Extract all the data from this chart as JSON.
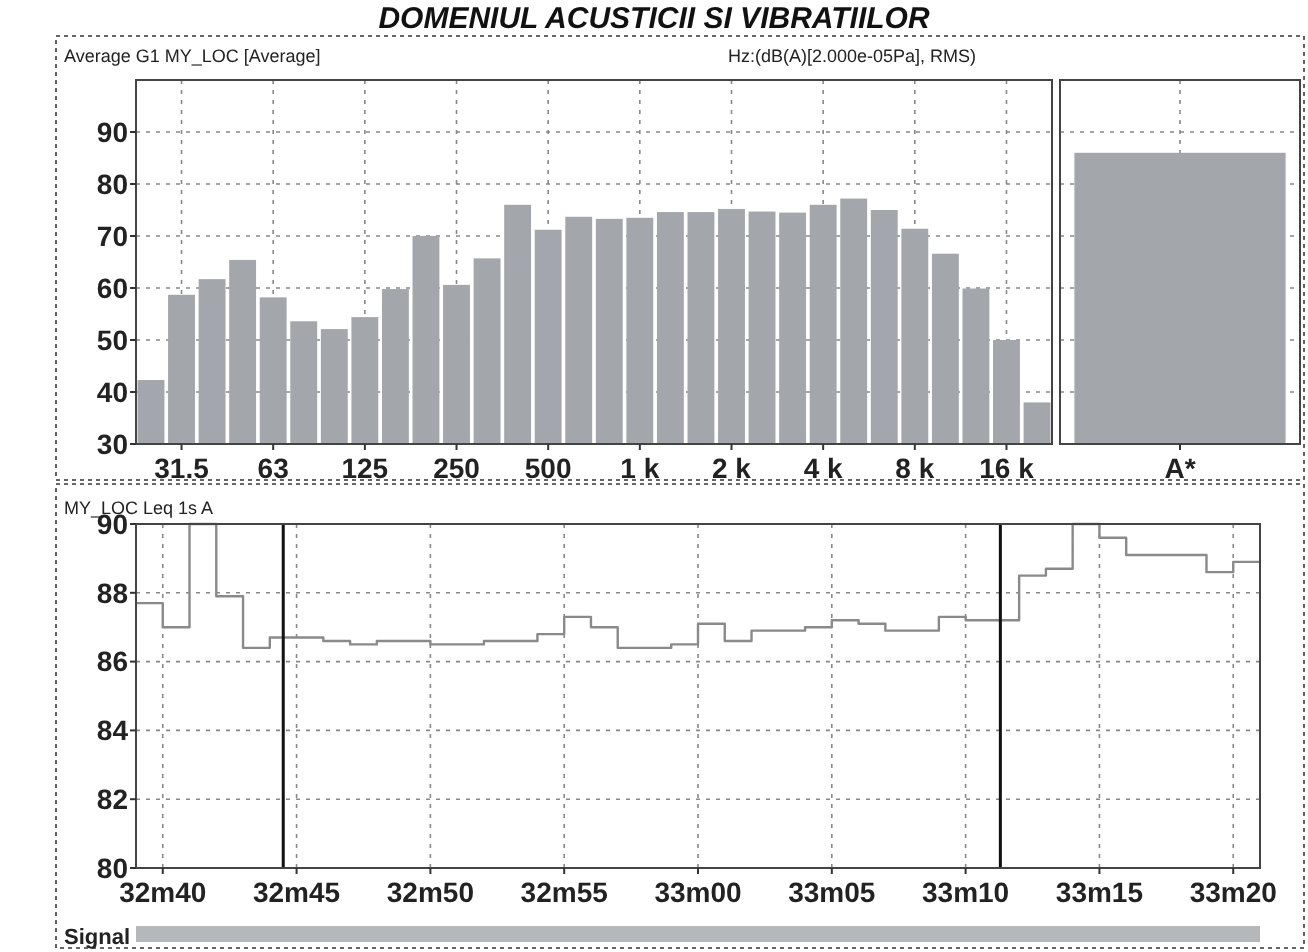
{
  "chart_data": [
    {
      "type": "bar",
      "title": "DOMENIUL ACUSTICII SI VIBRATIILOR",
      "subtitle": "Average G1 MY_LOC [Average]",
      "annotations": [
        "Hz:(dB(A)[2.000e-05Pa], RMS)"
      ],
      "categories": [
        null,
        "31.5",
        null,
        null,
        "63",
        null,
        null,
        "125",
        null,
        null,
        "250",
        null,
        null,
        "500",
        null,
        null,
        "1 k",
        null,
        null,
        "2 k",
        null,
        null,
        "4 k",
        null,
        null,
        "8 k",
        null,
        null,
        "16 k",
        null
      ],
      "values": [
        42.3,
        58.7,
        61.7,
        65.4,
        58.2,
        53.6,
        52.1,
        54.4,
        59.8,
        70.0,
        60.6,
        65.7,
        76.0,
        71.2,
        73.7,
        73.3,
        73.5,
        74.6,
        74.6,
        75.2,
        74.7,
        74.5,
        76.0,
        77.2,
        75.0,
        71.4,
        66.6,
        59.9,
        50.0,
        38.0
      ],
      "color": "#a3a7ab",
      "ylim": [
        30,
        100
      ],
      "yticks": [
        30,
        40,
        50,
        60,
        70,
        80,
        90
      ],
      "grid": true
    },
    {
      "type": "bar",
      "categories": [
        "A*"
      ],
      "values": [
        86.0
      ],
      "color": "#a3a7ab",
      "ylim": [
        30,
        100
      ],
      "yticks": [
        30,
        40,
        50,
        60,
        70,
        80,
        90
      ],
      "grid": true,
      "tick_labels": "x"
    },
    {
      "type": "step",
      "title": "MY_LOC  Leq 1s  A",
      "annotations": [
        "Signal"
      ],
      "categories": [
        null,
        "32m40",
        null,
        null,
        null,
        null,
        "32m45",
        null,
        null,
        null,
        null,
        "32m50",
        null,
        null,
        null,
        null,
        "32m55",
        null,
        null,
        null,
        null,
        "33m00",
        null,
        null,
        null,
        null,
        "33m05",
        null,
        null,
        null,
        null,
        "33m10",
        null,
        null,
        null,
        null,
        "33m15",
        null,
        null,
        null,
        null,
        "33m20",
        null
      ],
      "series": [
        {
          "color": "#8a8a8a",
          "values": [
            87.7,
            87.0,
            90.0,
            87.9,
            86.4,
            86.7,
            86.7,
            86.6,
            86.5,
            86.6,
            86.6,
            86.5,
            86.5,
            86.6,
            86.6,
            86.8,
            87.3,
            87.0,
            86.4,
            86.4,
            86.5,
            87.1,
            86.6,
            86.9,
            86.9,
            87.0,
            87.2,
            87.1,
            86.9,
            86.9,
            87.3,
            87.2,
            87.2,
            88.5,
            88.7,
            90.0,
            89.6,
            89.1,
            89.1,
            89.1,
            88.6,
            88.9,
            88.9
          ]
        }
      ],
      "ylim": [
        80,
        90
      ],
      "yticks": [
        80,
        82,
        84,
        86,
        88,
        90
      ],
      "grid": true
    }
  ]
}
